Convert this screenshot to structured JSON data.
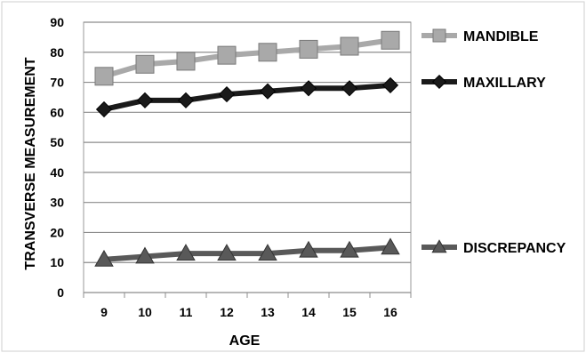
{
  "chart_data": {
    "type": "line",
    "title": "",
    "xlabel": "AGE",
    "ylabel": "TRANSVERSE MEASUREMENT",
    "categories": [
      "9",
      "10",
      "11",
      "12",
      "13",
      "14",
      "15",
      "16"
    ],
    "ylim": [
      0,
      90
    ],
    "yticks": [
      0,
      10,
      20,
      30,
      40,
      50,
      60,
      70,
      80,
      90
    ],
    "grid": true,
    "legend_position": "right",
    "series": [
      {
        "name": "MANDIBLE",
        "marker": "square",
        "color": "#a9a9a9",
        "values": [
          72,
          76,
          77,
          79,
          80,
          81,
          82,
          84
        ]
      },
      {
        "name": "MAXILLARY",
        "marker": "diamond",
        "color": "#1a1a1a",
        "values": [
          61,
          64,
          64,
          66,
          67,
          68,
          68,
          69
        ]
      },
      {
        "name": "DISCREPANCY",
        "marker": "triangle",
        "color": "#595959",
        "values": [
          11,
          12,
          13,
          13,
          13,
          14,
          14,
          15
        ]
      }
    ]
  }
}
